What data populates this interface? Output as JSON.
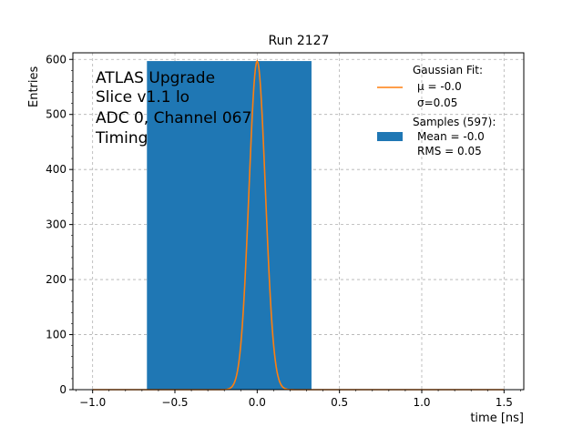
{
  "chart_data": {
    "type": "bar",
    "title": "Run 2127",
    "xlabel": "time [ns]",
    "ylabel": "Entries",
    "xlim": [
      -1.12,
      1.62
    ],
    "ylim": [
      0,
      612
    ],
    "xticks": [
      -1.0,
      -0.5,
      0.0,
      0.5,
      1.0,
      1.5
    ],
    "xtick_labels": [
      "−1.0",
      "−0.5",
      "0.0",
      "0.5",
      "1.0",
      "1.5"
    ],
    "yticks": [
      0,
      100,
      200,
      300,
      400,
      500,
      600
    ],
    "ytick_labels": [
      "0",
      "100",
      "200",
      "300",
      "400",
      "500",
      "600"
    ],
    "grid": true,
    "legend_position": "top-right",
    "series": [
      {
        "name": "Samples (597):",
        "type": "histogram",
        "bins": [
          {
            "x0": -0.67,
            "x1": 0.33,
            "count": 597
          }
        ],
        "color": "#1f77b4",
        "stats": [
          "Mean = -0.0",
          "RMS = 0.05"
        ]
      },
      {
        "name": "Gaussian Fit:",
        "type": "line",
        "curve": "gaussian",
        "amplitude": 597,
        "mu": 0.0,
        "sigma": 0.05,
        "x_range": [
          -1.0,
          1.5
        ],
        "color": "#ff7f0e",
        "params": [
          "μ = -0.0",
          "σ=0.05"
        ]
      }
    ],
    "annotation": [
      "ATLAS Upgrade",
      "Slice v1.1 lo",
      "ADC 0, Channel 067",
      "Timing"
    ]
  }
}
